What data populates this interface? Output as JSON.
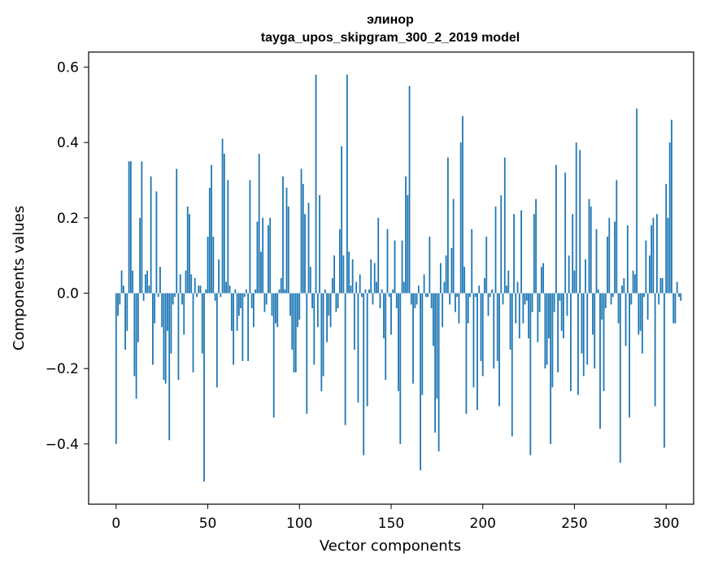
{
  "chart_data": {
    "type": "bar",
    "title": "элинор",
    "subtitle": "tayga_upos_skipgram_300_2_2019 model",
    "xlabel": "Vector components",
    "ylabel": "Components values",
    "xlim": [
      -15,
      315
    ],
    "ylim": [
      -0.56,
      0.64
    ],
    "xticks": [
      0,
      50,
      100,
      150,
      200,
      250,
      300
    ],
    "yticks": [
      -0.4,
      -0.2,
      0.0,
      0.2,
      0.4,
      0.6
    ],
    "xtick_labels": [
      "0",
      "50",
      "100",
      "150",
      "200",
      "250",
      "300"
    ],
    "ytick_labels": [
      "−0.4",
      "−0.2",
      "0.0",
      "0.2",
      "0.4",
      "0.6"
    ],
    "bar_color": "#1f77b4",
    "grid": false,
    "values": [
      -0.4,
      -0.06,
      -0.03,
      0.06,
      0.02,
      -0.15,
      -0.1,
      0.35,
      0.35,
      0.06,
      -0.22,
      -0.28,
      -0.13,
      0.2,
      0.35,
      -0.02,
      0.05,
      0.06,
      0.02,
      0.31,
      -0.19,
      -0.08,
      0.27,
      -0.01,
      0.07,
      -0.09,
      -0.23,
      -0.24,
      -0.1,
      -0.39,
      -0.16,
      -0.03,
      -0.01,
      0.33,
      -0.23,
      0.05,
      -0.03,
      -0.11,
      0.06,
      0.23,
      0.21,
      0.05,
      -0.21,
      0.04,
      -0.01,
      0.02,
      0.02,
      -0.16,
      -0.5,
      0.01,
      0.15,
      0.28,
      0.34,
      0.15,
      -0.02,
      -0.25,
      0.09,
      -0.01,
      0.41,
      0.37,
      0.03,
      0.3,
      0.02,
      -0.1,
      -0.19,
      0.01,
      -0.1,
      -0.06,
      -0.04,
      -0.18,
      -0.01,
      0.01,
      -0.18,
      0.3,
      -0.04,
      -0.09,
      0.01,
      0.19,
      0.37,
      0.11,
      0.2,
      -0.05,
      -0.03,
      0.18,
      0.2,
      -0.06,
      -0.33,
      -0.08,
      -0.09,
      0.01,
      0.04,
      0.31,
      0.01,
      0.28,
      0.23,
      -0.06,
      -0.15,
      -0.21,
      -0.21,
      -0.09,
      -0.07,
      0.33,
      0.29,
      0.21,
      -0.32,
      0.24,
      0.07,
      -0.04,
      -0.19,
      0.58,
      -0.09,
      0.26,
      -0.26,
      -0.22,
      0.01,
      -0.13,
      -0.06,
      -0.09,
      0.04,
      0.1,
      -0.05,
      -0.04,
      0.17,
      0.39,
      0.1,
      -0.35,
      0.58,
      0.11,
      0.02,
      0.09,
      -0.15,
      0.03,
      -0.29,
      0.05,
      -0.01,
      -0.43,
      0.01,
      -0.3,
      0.01,
      0.09,
      -0.03,
      0.08,
      0.03,
      0.2,
      -0.04,
      0.01,
      -0.12,
      -0.23,
      0.17,
      -0.01,
      -0.11,
      0.01,
      0.14,
      -0.04,
      -0.26,
      -0.4,
      0.14,
      0.03,
      0.31,
      0.26,
      0.55,
      -0.03,
      -0.24,
      -0.04,
      -0.03,
      0.02,
      -0.47,
      -0.27,
      0.05,
      -0.01,
      -0.01,
      0.15,
      -0.04,
      -0.14,
      -0.37,
      -0.28,
      -0.42,
      0.08,
      -0.09,
      0.03,
      0.1,
      0.36,
      -0.03,
      0.12,
      0.25,
      -0.05,
      -0.01,
      -0.08,
      0.4,
      0.47,
      0.07,
      -0.32,
      -0.08,
      -0.01,
      0.17,
      -0.25,
      -0.01,
      -0.31,
      0.02,
      -0.18,
      -0.22,
      0.04,
      0.15,
      -0.06,
      -0.01,
      0.01,
      -0.2,
      0.23,
      -0.18,
      -0.3,
      0.26,
      -0.03,
      0.36,
      0.02,
      0.06,
      -0.15,
      -0.38,
      0.21,
      -0.08,
      0.03,
      -0.12,
      0.22,
      -0.08,
      -0.03,
      -0.02,
      -0.12,
      -0.43,
      -0.05,
      0.21,
      0.25,
      -0.13,
      -0.05,
      0.07,
      0.08,
      -0.2,
      -0.19,
      -0.12,
      -0.4,
      -0.25,
      -0.05,
      0.34,
      -0.21,
      -0.02,
      -0.1,
      -0.12,
      0.32,
      -0.06,
      0.1,
      -0.26,
      0.21,
      0.06,
      0.4,
      -0.27,
      0.38,
      -0.16,
      -0.22,
      0.09,
      -0.19,
      0.25,
      0.23,
      -0.11,
      -0.2,
      0.17,
      0.01,
      -0.36,
      -0.07,
      -0.26,
      -0.04,
      0.15,
      0.2,
      -0.03,
      -0.01,
      0.19,
      0.3,
      -0.08,
      -0.45,
      0.02,
      0.04,
      -0.14,
      0.18,
      -0.33,
      -0.03,
      0.06,
      0.05,
      0.49,
      -0.11,
      -0.1,
      -0.16,
      -0.01,
      0.14,
      -0.07,
      0.1,
      0.18,
      0.2,
      -0.3,
      0.21,
      -0.03,
      0.04,
      0.04,
      -0.41,
      0.29,
      0.2,
      0.4,
      0.46,
      -0.08,
      -0.08,
      0.03,
      -0.01,
      -0.02
    ]
  }
}
